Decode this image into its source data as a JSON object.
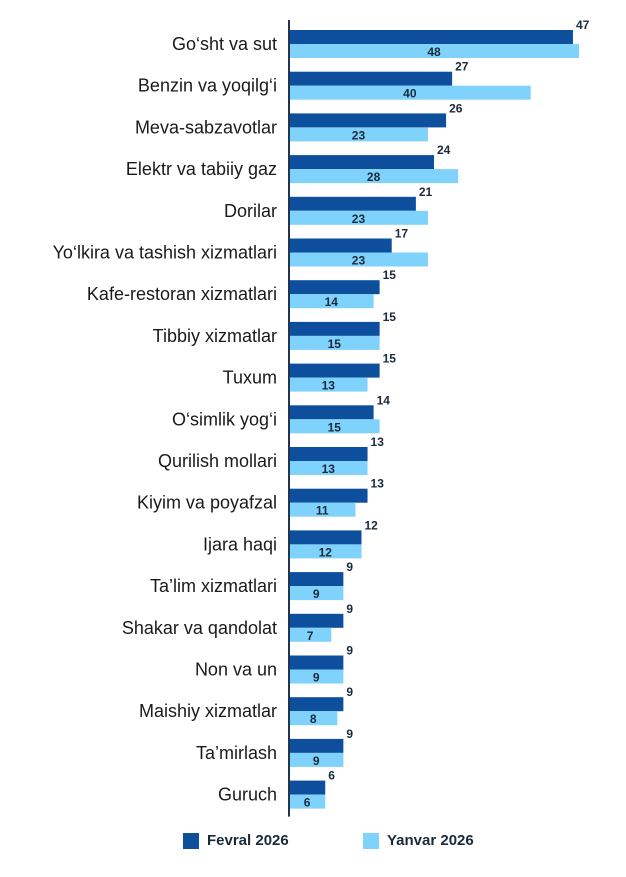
{
  "chart_data": {
    "type": "bar",
    "orientation": "horizontal",
    "categories": [
      "Go‘sht va sut",
      "Benzin va yoqilg‘i",
      "Meva-sabzavotlar",
      "Elektr va tabiiy gaz",
      "Dorilar",
      "Yo‘lkira va tashish xizmatlari",
      "Kafe-restoran xizmatlari",
      "Tibbiy xizmatlar",
      "Tuxum",
      "O‘simlik yog‘i",
      "Qurilish mollari",
      "Kiyim va poyafzal",
      "Ijara haqi",
      "Ta’lim xizmatlari",
      "Shakar va qandolat",
      "Non va un",
      "Maishiy xizmatlar",
      "Ta’mirlash",
      "Guruch"
    ],
    "series": [
      {
        "name": "Fevral 2026",
        "color": "#0d4f9c",
        "values": [
          47,
          27,
          26,
          24,
          21,
          17,
          15,
          15,
          15,
          14,
          13,
          13,
          12,
          9,
          9,
          9,
          9,
          9,
          6
        ]
      },
      {
        "name": "Yanvar 2026",
        "color": "#7fd2fb",
        "values": [
          48,
          40,
          23,
          28,
          23,
          23,
          14,
          15,
          13,
          15,
          13,
          11,
          12,
          9,
          7,
          9,
          8,
          9,
          6
        ]
      }
    ],
    "xlim": [
      0,
      48
    ],
    "grid": false,
    "legend_position": "bottom"
  }
}
